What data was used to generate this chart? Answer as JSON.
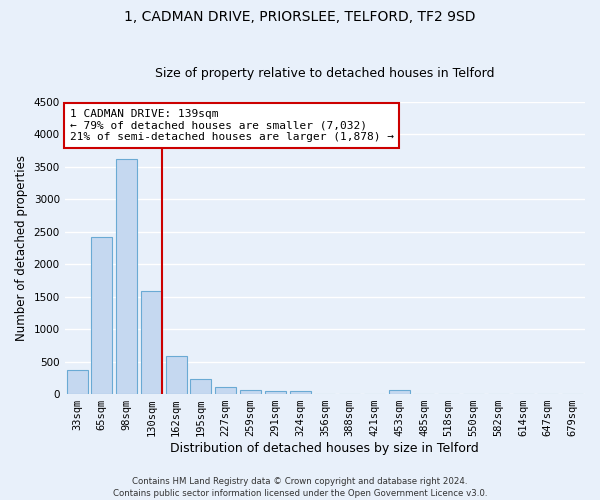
{
  "title1": "1, CADMAN DRIVE, PRIORSLEE, TELFORD, TF2 9SD",
  "title2": "Size of property relative to detached houses in Telford",
  "xlabel": "Distribution of detached houses by size in Telford",
  "ylabel": "Number of detached properties",
  "categories": [
    "33sqm",
    "65sqm",
    "98sqm",
    "130sqm",
    "162sqm",
    "195sqm",
    "227sqm",
    "259sqm",
    "291sqm",
    "324sqm",
    "356sqm",
    "388sqm",
    "421sqm",
    "453sqm",
    "485sqm",
    "518sqm",
    "550sqm",
    "582sqm",
    "614sqm",
    "647sqm",
    "679sqm"
  ],
  "values": [
    370,
    2410,
    3620,
    1580,
    590,
    230,
    110,
    70,
    55,
    40,
    0,
    0,
    0,
    60,
    0,
    0,
    0,
    0,
    0,
    0,
    0
  ],
  "bar_color": "#c5d8f0",
  "bar_edge_color": "#6aaad4",
  "annotation_text": "1 CADMAN DRIVE: 139sqm\n← 79% of detached houses are smaller (7,032)\n21% of semi-detached houses are larger (1,878) →",
  "annotation_box_color": "#ffffff",
  "annotation_box_edge": "#cc0000",
  "vline_color": "#cc0000",
  "vline_x": 3,
  "ylim": [
    0,
    4500
  ],
  "yticks": [
    0,
    500,
    1000,
    1500,
    2000,
    2500,
    3000,
    3500,
    4000,
    4500
  ],
  "bg_color": "#e8f0fa",
  "grid_color": "#ffffff",
  "footer": "Contains HM Land Registry data © Crown copyright and database right 2024.\nContains public sector information licensed under the Open Government Licence v3.0.",
  "title1_fontsize": 10,
  "title2_fontsize": 9,
  "tick_fontsize": 7.5,
  "ylabel_fontsize": 8.5,
  "xlabel_fontsize": 9,
  "annot_fontsize": 8
}
